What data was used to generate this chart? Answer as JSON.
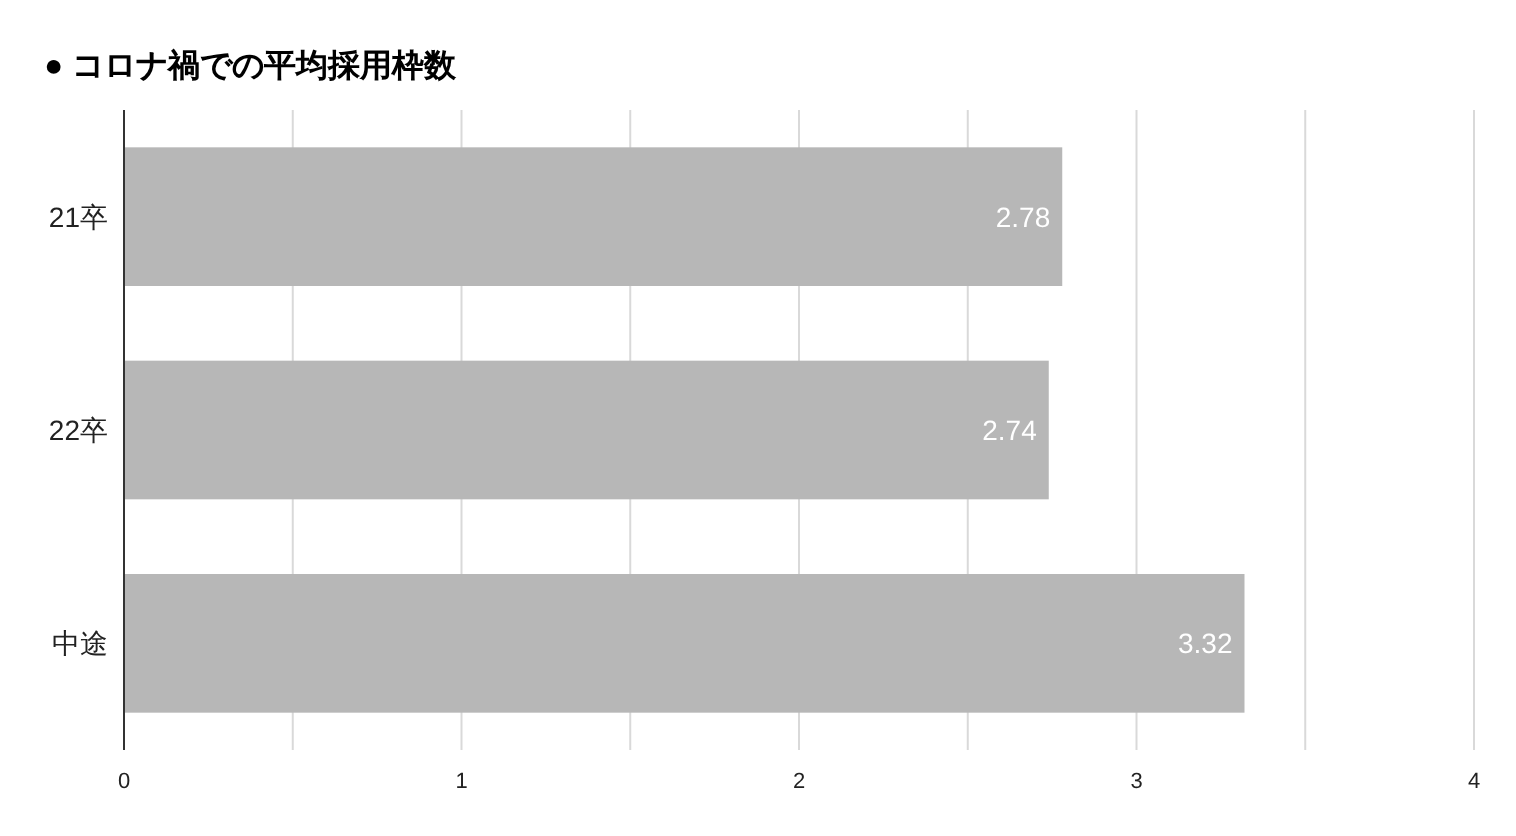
{
  "chart_data": {
    "type": "bar",
    "orientation": "horizontal",
    "title": "● コロナ禍での平均採用枠数",
    "categories": [
      "21卒",
      "22卒",
      "中途"
    ],
    "values": [
      2.78,
      2.74,
      3.32
    ],
    "color": "#b7b7b7",
    "xlim": [
      0,
      4
    ],
    "xticks": [
      0,
      {
        "value": 0.5,
        "label": null
      },
      1,
      {
        "value": 1.5,
        "label": null
      },
      2,
      {
        "value": 2.5,
        "label": null
      },
      3,
      {
        "value": 3.5,
        "label": null
      },
      4
    ],
    "grid": "x",
    "data_labels": true
  }
}
